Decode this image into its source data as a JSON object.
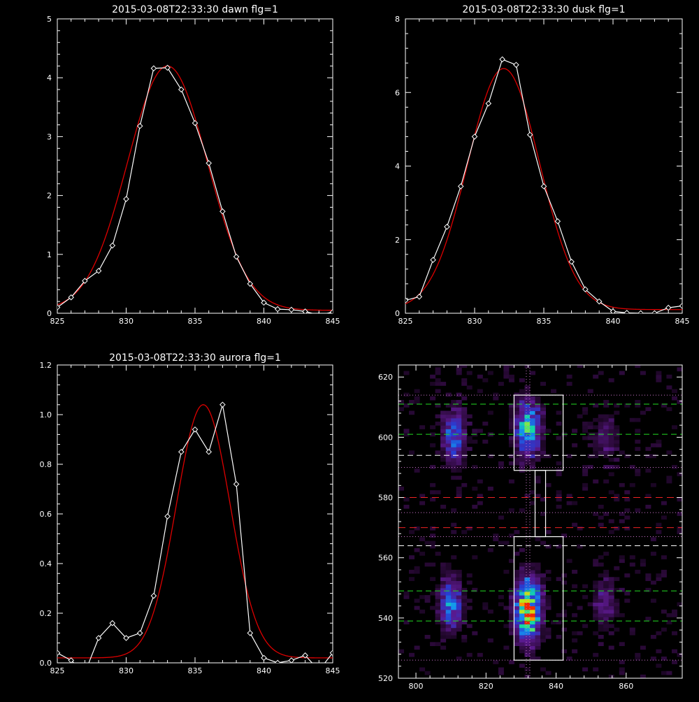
{
  "colors": {
    "background": "#000000",
    "axis": "#ffffff",
    "data_line": "#ffffff",
    "fit_line": "#dd0000",
    "green_dash": "#22dd22",
    "white_dash": "#ffffff",
    "red_dash": "#ee2222",
    "dotted_line": "#cc77cc"
  },
  "chart_data": [
    {
      "type": "line",
      "title": "2015-03-08T22:33:30 dawn flg=1",
      "xlim": [
        825,
        845
      ],
      "ylim": [
        0,
        5
      ],
      "x_ticks": [
        "825",
        "830",
        "835",
        "840",
        "845"
      ],
      "y_ticks": [
        "0",
        "1",
        "2",
        "3",
        "4",
        "5"
      ],
      "marker": "diamond",
      "data": {
        "x": [
          825,
          826,
          827,
          828,
          829,
          830,
          831,
          832,
          833,
          834,
          835,
          836,
          837,
          838,
          839,
          840,
          841,
          842,
          843,
          844,
          845
        ],
        "y": [
          0.1,
          0.27,
          0.55,
          0.72,
          1.15,
          1.94,
          3.18,
          4.16,
          4.17,
          3.8,
          3.23,
          2.55,
          1.73,
          0.96,
          0.5,
          0.18,
          0.07,
          0.06,
          0.03,
          -0.03,
          0.02
        ]
      },
      "fit": {
        "amplitude": 4.15,
        "center": 833,
        "sigma": 2.9,
        "offset": 0.05
      }
    },
    {
      "type": "line",
      "title": "2015-03-08T22:33:30 dusk flg=1",
      "xlim": [
        825,
        845
      ],
      "ylim": [
        0,
        8
      ],
      "x_ticks": [
        "825",
        "830",
        "835",
        "840",
        "845"
      ],
      "y_ticks": [
        "0",
        "2",
        "4",
        "6",
        "8"
      ],
      "marker": "diamond",
      "data": {
        "x": [
          825,
          826,
          827,
          828,
          829,
          830,
          831,
          832,
          833,
          834,
          835,
          836,
          837,
          838,
          839,
          840,
          841,
          842,
          843,
          844,
          845
        ],
        "y": [
          0.35,
          0.45,
          1.45,
          2.35,
          3.45,
          4.8,
          5.7,
          6.9,
          6.75,
          4.85,
          3.45,
          2.5,
          1.4,
          0.65,
          0.32,
          0.05,
          0.01,
          0.0,
          0.0,
          0.15,
          0.2
        ]
      },
      "fit": {
        "amplitude": 6.55,
        "center": 832.1,
        "sigma": 2.6,
        "offset": 0.1
      }
    },
    {
      "type": "line",
      "title": "2015-03-08T22:33:30 aurora flg=1",
      "xlim": [
        825,
        845
      ],
      "ylim": [
        0,
        1.2
      ],
      "x_ticks": [
        "825",
        "830",
        "835",
        "840",
        "845"
      ],
      "y_ticks": [
        "0.0",
        "0.2",
        "0.4",
        "0.6",
        "0.8",
        "1.0",
        "1.2"
      ],
      "marker": "diamond",
      "data": {
        "x": [
          825,
          826,
          827,
          828,
          829,
          830,
          831,
          832,
          833,
          834,
          835,
          836,
          837,
          838,
          839,
          840,
          841,
          842,
          843,
          844,
          845
        ],
        "y": [
          0.04,
          0.01,
          -0.04,
          0.1,
          0.16,
          0.1,
          0.12,
          0.27,
          0.59,
          0.85,
          0.94,
          0.85,
          1.04,
          0.72,
          0.12,
          0.02,
          0.0,
          0.01,
          0.03,
          -0.03,
          0.04
        ]
      },
      "fit": {
        "amplitude": 1.02,
        "center": 835.6,
        "sigma": 1.95,
        "offset": 0.02
      }
    },
    {
      "type": "heatmap",
      "xlim": [
        795,
        876
      ],
      "ylim": [
        520,
        624
      ],
      "x_ticks": [
        "800",
        "820",
        "840",
        "860"
      ],
      "y_ticks": [
        "520",
        "540",
        "560",
        "580",
        "600",
        "620"
      ],
      "blobs": [
        {
          "x": 810,
          "y": 545,
          "sx": 2.2,
          "sy": 6,
          "amp": 0.6
        },
        {
          "x": 811,
          "y": 600,
          "sx": 2.2,
          "sy": 6,
          "amp": 0.55
        },
        {
          "x": 832,
          "y": 543,
          "sx": 2.6,
          "sy": 7,
          "amp": 1.0
        },
        {
          "x": 832,
          "y": 603,
          "sx": 2.4,
          "sy": 6,
          "amp": 0.8
        },
        {
          "x": 854,
          "y": 545,
          "sx": 2.5,
          "sy": 6,
          "amp": 0.25
        },
        {
          "x": 854,
          "y": 600,
          "sx": 2.5,
          "sy": 6,
          "amp": 0.2
        }
      ],
      "boxes": [
        {
          "x0": 828,
          "x1": 842,
          "y0": 589,
          "y1": 614
        },
        {
          "x0": 828,
          "x1": 842,
          "y0": 526,
          "y1": 567
        },
        {
          "x0": 834,
          "x1": 837,
          "y0": 567,
          "y1": 589
        }
      ],
      "green_dashed_y": [
        611,
        601,
        549,
        539
      ],
      "white_dashed_y": [
        594,
        564
      ],
      "red_dashed_y": [
        580,
        570
      ],
      "dotted_y": [
        614,
        590,
        575,
        567,
        526
      ],
      "dotted_x": [
        831.5,
        832.5
      ]
    }
  ]
}
